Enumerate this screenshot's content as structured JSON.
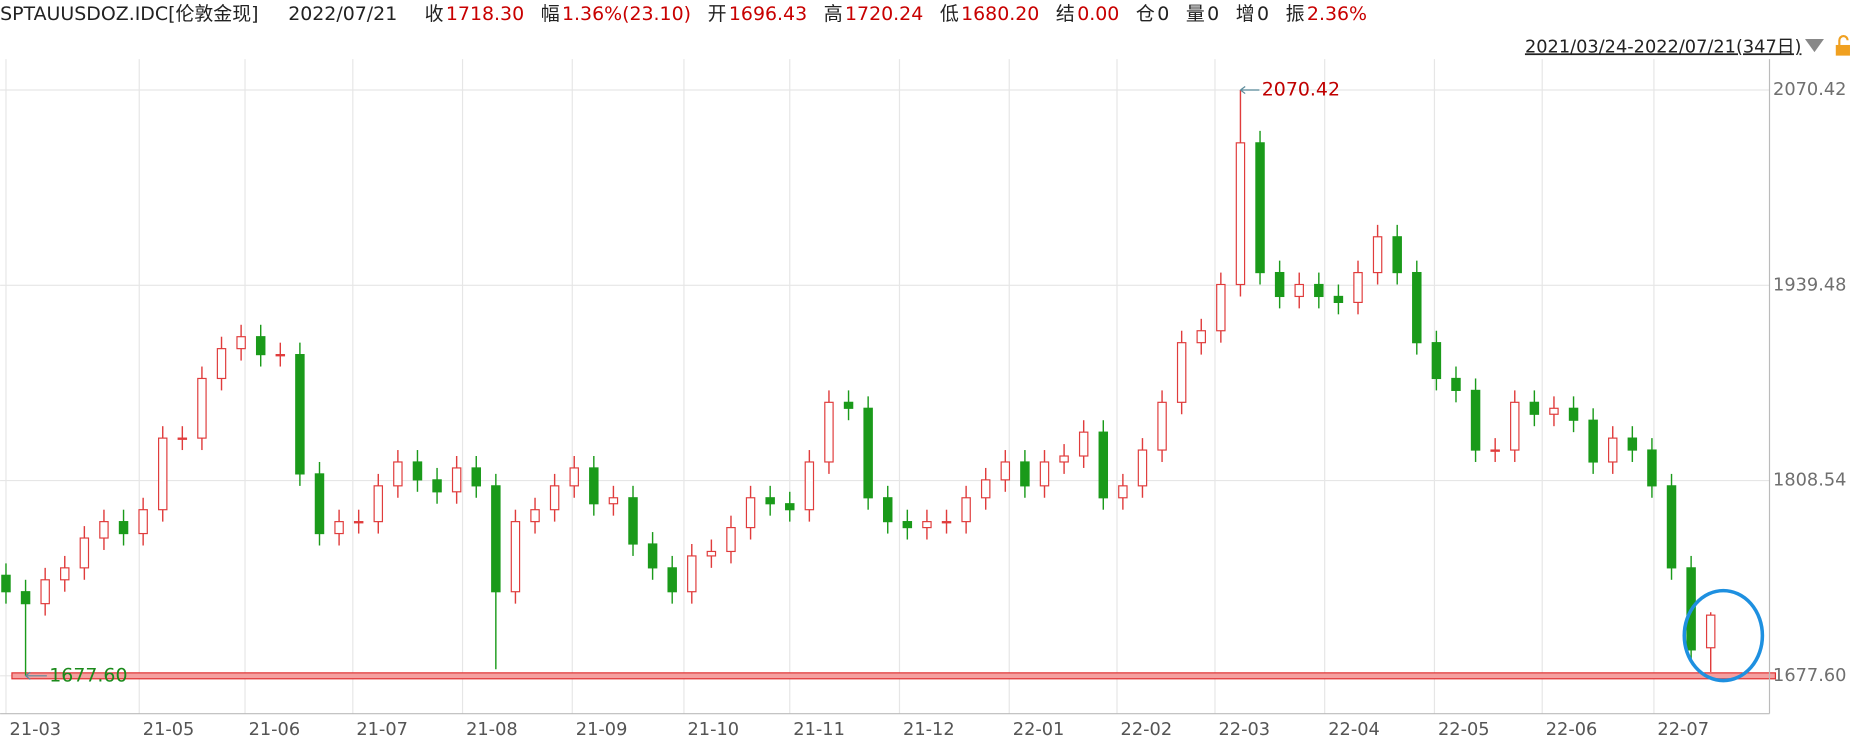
{
  "header": {
    "symbol": "SPTAUUSDOZ.IDC[伦敦金现]",
    "date": "2022/07/21",
    "items": [
      {
        "label": "收",
        "value": "1718.30",
        "color": "#c80000"
      },
      {
        "label": "幅",
        "value": "1.36%(23.10)",
        "color": "#c80000"
      },
      {
        "label": "开",
        "value": "1696.43",
        "color": "#c80000"
      },
      {
        "label": "高",
        "value": "1720.24",
        "color": "#c80000"
      },
      {
        "label": "低",
        "value": "1680.20",
        "color": "#c80000"
      },
      {
        "label": "结",
        "value": "0.00",
        "color": "#c80000"
      },
      {
        "label": "仓",
        "value": "0",
        "color": "#222222"
      },
      {
        "label": "量",
        "value": "0",
        "color": "#222222"
      },
      {
        "label": "增",
        "value": "0",
        "color": "#222222"
      },
      {
        "label": "振",
        "value": "2.36%",
        "color": "#c80000"
      }
    ],
    "range": "2021/03/24-2022/07/21(347日)"
  },
  "chart_data": {
    "type": "candlestick",
    "up_color": "#e03c3c",
    "down_color": "#1a9a1a",
    "grid": true,
    "xlim": [
      -0.3,
      90
    ],
    "ylim": [
      1654.6,
      2091.1
    ],
    "yticks": [
      {
        "value": 1677.6,
        "label": "1677.60"
      },
      {
        "value": 1808.54,
        "label": "1808.54"
      },
      {
        "value": 1939.48,
        "label": "1939.48"
      },
      {
        "value": 2070.42,
        "label": "2070.42"
      }
    ],
    "xticks": [
      {
        "value": 0,
        "label": "21-03"
      },
      {
        "value": 6.8,
        "label": "21-05"
      },
      {
        "value": 12.2,
        "label": "21-06"
      },
      {
        "value": 17.7,
        "label": "21-07"
      },
      {
        "value": 23.3,
        "label": "21-08"
      },
      {
        "value": 28.9,
        "label": "21-09"
      },
      {
        "value": 34.6,
        "label": "21-10"
      },
      {
        "value": 40.0,
        "label": "21-11"
      },
      {
        "value": 45.6,
        "label": "21-12"
      },
      {
        "value": 51.2,
        "label": "22-01"
      },
      {
        "value": 56.7,
        "label": "22-02"
      },
      {
        "value": 61.7,
        "label": "22-03"
      },
      {
        "value": 67.3,
        "label": "22-04"
      },
      {
        "value": 72.9,
        "label": "22-05"
      },
      {
        "value": 78.4,
        "label": "22-06"
      },
      {
        "value": 84.1,
        "label": "22-07"
      }
    ],
    "open": [
      1745,
      1734,
      1726,
      1742,
      1750,
      1770,
      1781,
      1773,
      1789,
      1837,
      1837,
      1877,
      1897,
      1905,
      1893,
      1893,
      1813,
      1773,
      1781,
      1781,
      1805,
      1821,
      1809,
      1801,
      1817,
      1805,
      1734,
      1781,
      1789,
      1805,
      1817,
      1793,
      1797,
      1766,
      1750,
      1734,
      1758,
      1761,
      1777,
      1797,
      1793,
      1789,
      1821,
      1861,
      1857,
      1797,
      1781,
      1777,
      1781,
      1781,
      1797,
      1809,
      1821,
      1805,
      1821,
      1825,
      1841,
      1797,
      1805,
      1829,
      1861,
      1901,
      1909,
      1940,
      2035,
      1948,
      1932,
      1940,
      1932,
      1928,
      1948,
      1972,
      1948,
      1901,
      1877,
      1869,
      1829,
      1829,
      1861,
      1853,
      1857,
      1849,
      1821,
      1837,
      1829,
      1805,
      1750,
      1696.43
    ],
    "high": [
      1753,
      1742,
      1750,
      1758,
      1778,
      1789,
      1789,
      1797,
      1845,
      1845,
      1885,
      1905,
      1913,
      1913,
      1901,
      1901,
      1821,
      1789,
      1789,
      1813,
      1829,
      1829,
      1817,
      1825,
      1825,
      1813,
      1789,
      1797,
      1813,
      1825,
      1825,
      1805,
      1805,
      1774,
      1758,
      1766,
      1769,
      1785,
      1805,
      1805,
      1801,
      1829,
      1869,
      1869,
      1865,
      1805,
      1789,
      1789,
      1789,
      1805,
      1817,
      1829,
      1829,
      1829,
      1833,
      1849,
      1849,
      1813,
      1837,
      1869,
      1909,
      1917,
      1948,
      2070.42,
      2043,
      1956,
      1948,
      1948,
      1940,
      1956,
      1980,
      1980,
      1956,
      1909,
      1885,
      1877,
      1837,
      1869,
      1869,
      1865,
      1865,
      1857,
      1845,
      1845,
      1837,
      1813,
      1758,
      1720.24
    ],
    "low": [
      1726,
      1677.6,
      1718,
      1734,
      1742,
      1762,
      1765,
      1765,
      1781,
      1829,
      1829,
      1869,
      1889,
      1885,
      1885,
      1805,
      1765,
      1765,
      1773,
      1773,
      1797,
      1801,
      1793,
      1793,
      1797,
      1682,
      1726,
      1773,
      1781,
      1797,
      1785,
      1785,
      1758,
      1742,
      1726,
      1726,
      1750,
      1753,
      1769,
      1785,
      1781,
      1781,
      1813,
      1849,
      1789,
      1773,
      1769,
      1769,
      1773,
      1773,
      1789,
      1801,
      1797,
      1797,
      1813,
      1817,
      1789,
      1789,
      1797,
      1821,
      1853,
      1893,
      1901,
      1932,
      1940,
      1924,
      1924,
      1924,
      1920,
      1920,
      1940,
      1940,
      1893,
      1869,
      1861,
      1821,
      1821,
      1821,
      1845,
      1845,
      1841,
      1813,
      1813,
      1821,
      1797,
      1742,
      1687,
      1680.2
    ],
    "close": [
      1734,
      1726,
      1742,
      1750,
      1770,
      1781,
      1773,
      1789,
      1837,
      1837,
      1877,
      1897,
      1905,
      1893,
      1893,
      1813,
      1773,
      1781,
      1781,
      1805,
      1821,
      1809,
      1801,
      1817,
      1805,
      1734,
      1781,
      1789,
      1805,
      1817,
      1793,
      1797,
      1766,
      1750,
      1734,
      1758,
      1761,
      1777,
      1797,
      1793,
      1789,
      1821,
      1861,
      1857,
      1797,
      1781,
      1777,
      1781,
      1781,
      1797,
      1809,
      1821,
      1805,
      1821,
      1825,
      1841,
      1797,
      1805,
      1829,
      1861,
      1901,
      1909,
      1940,
      2035,
      1948,
      1932,
      1940,
      1932,
      1928,
      1948,
      1972,
      1948,
      1901,
      1877,
      1869,
      1829,
      1829,
      1861,
      1853,
      1857,
      1849,
      1821,
      1837,
      1829,
      1805,
      1750,
      1695,
      1718.3
    ]
  }
}
